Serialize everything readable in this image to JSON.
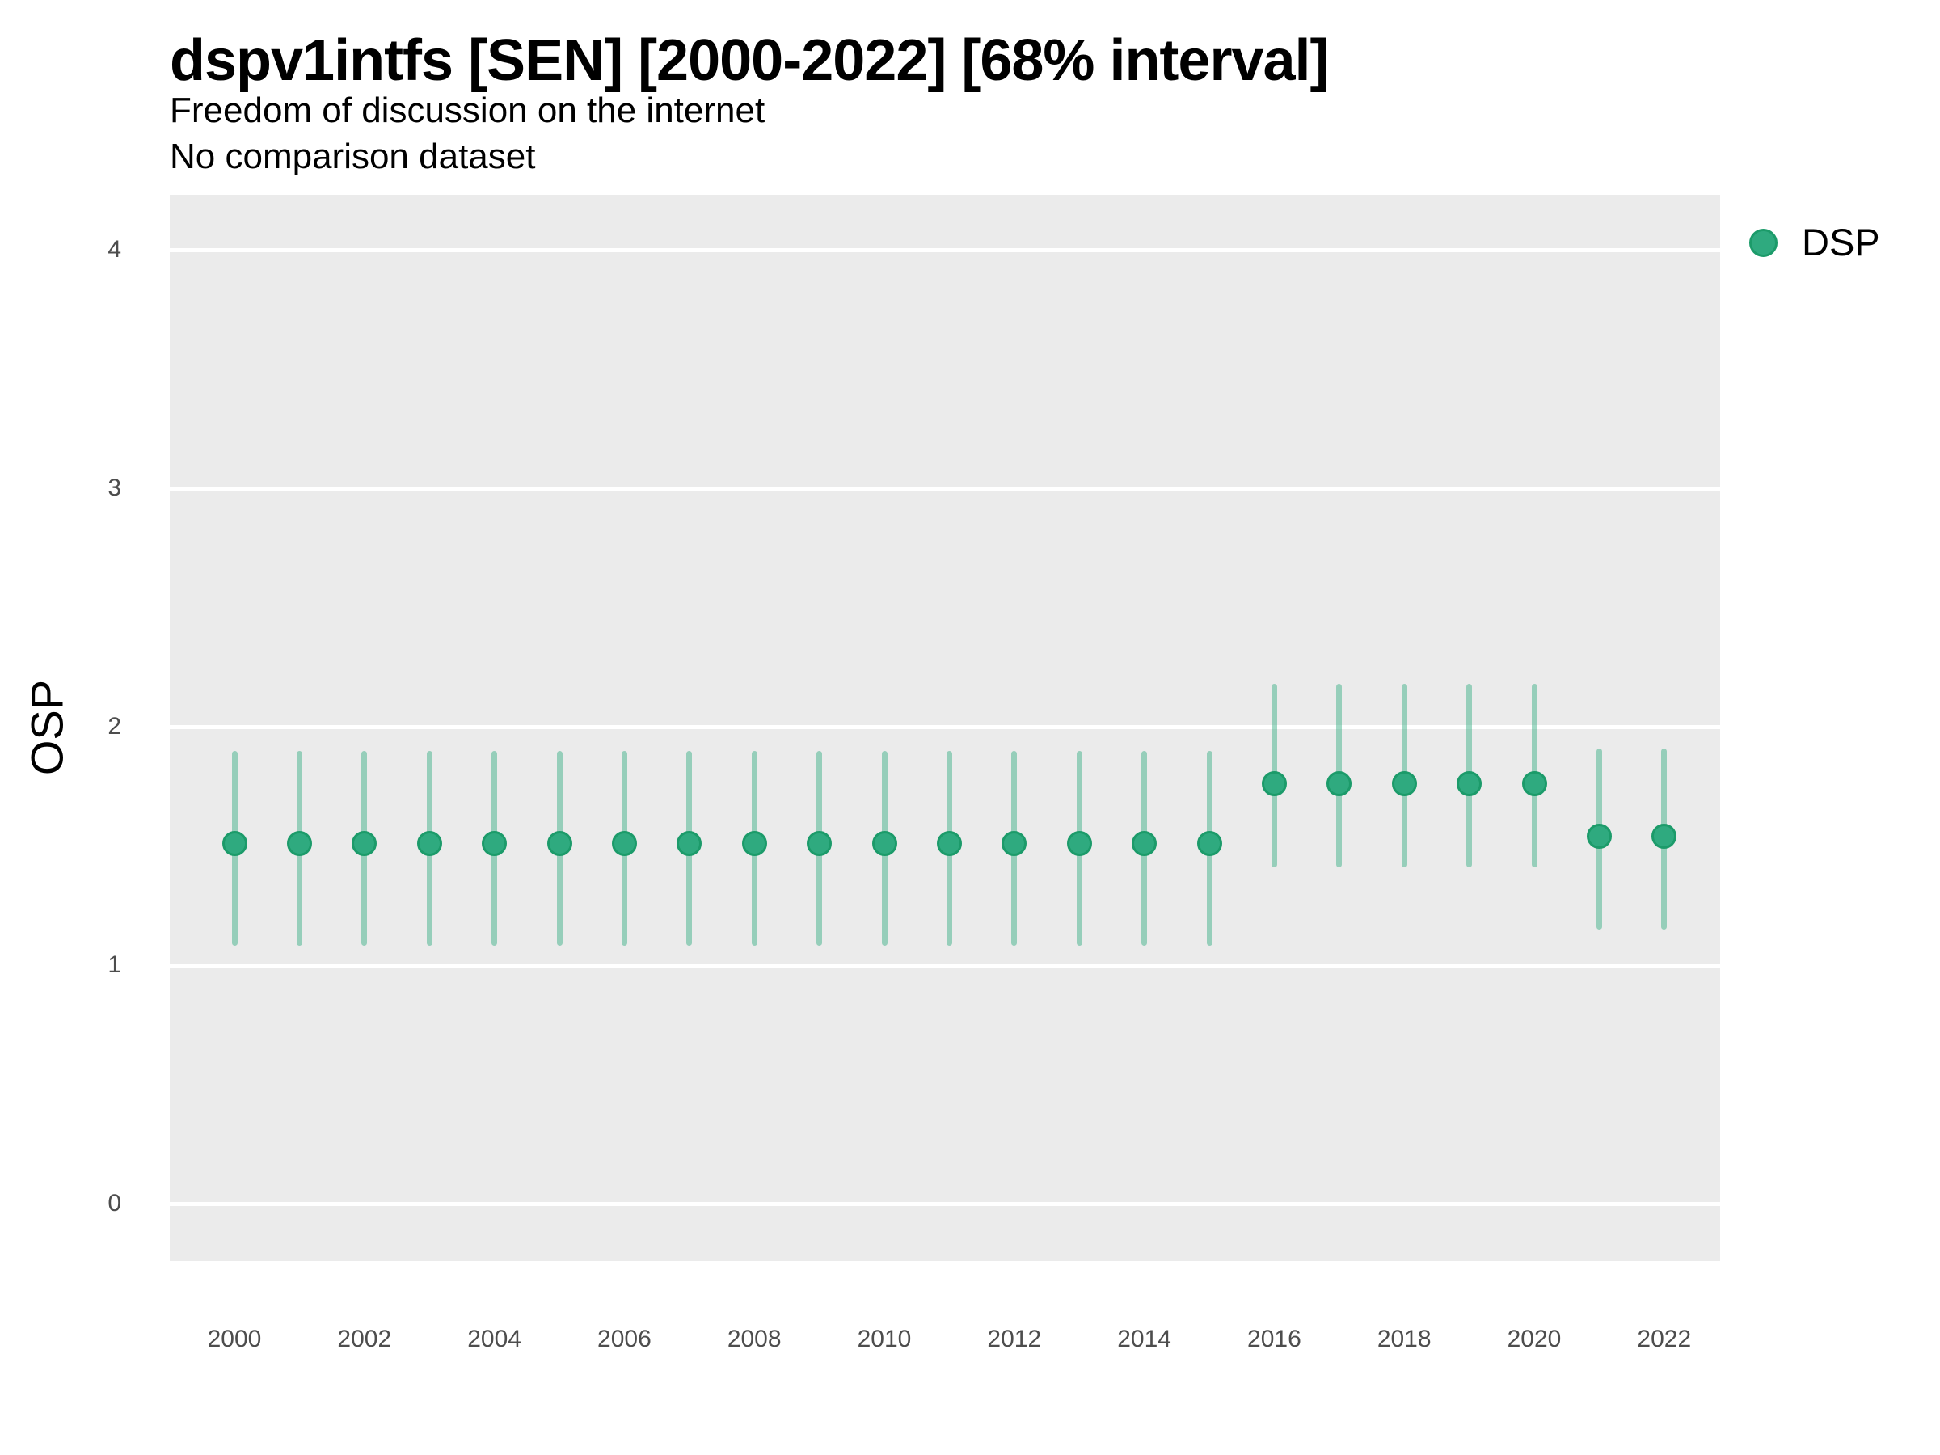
{
  "header": {
    "title": "dspv1intfs [SEN] [2000-2022] [68% interval]",
    "subtitle_line1": "Freedom of discussion on the internet",
    "subtitle_line2": "No comparison dataset"
  },
  "y_axis_title": "OSP",
  "legend_label": "DSP",
  "colors": {
    "point_fill": "#2FAA7F",
    "point_stroke": "#1C9B6A",
    "interval_bar": "rgba(47,170,127,0.45)",
    "panel_background": "#EBEBEB",
    "gridline": "#FFFFFF",
    "tick_text": "#4D4D4D"
  },
  "chart_data": {
    "type": "scatter",
    "title": "dspv1intfs [SEN] [2000-2022] [68% interval]",
    "subtitle": [
      "Freedom of discussion on the internet",
      "No comparison dataset"
    ],
    "xlabel": "",
    "ylabel": "OSP",
    "ylim": [
      0,
      4
    ],
    "y_ticks": [
      0,
      1,
      2,
      3,
      4
    ],
    "x_ticks": [
      2000,
      2002,
      2004,
      2006,
      2008,
      2010,
      2012,
      2014,
      2016,
      2018,
      2020,
      2022
    ],
    "grid": "horizontal-major-only",
    "legend_position": "right-top",
    "interval": "68%",
    "series": [
      {
        "name": "DSP",
        "points": [
          {
            "year": 2000,
            "est": 1.51,
            "lo": 1.08,
            "hi": 1.9
          },
          {
            "year": 2001,
            "est": 1.51,
            "lo": 1.08,
            "hi": 1.9
          },
          {
            "year": 2002,
            "est": 1.51,
            "lo": 1.08,
            "hi": 1.9
          },
          {
            "year": 2003,
            "est": 1.51,
            "lo": 1.08,
            "hi": 1.9
          },
          {
            "year": 2004,
            "est": 1.51,
            "lo": 1.08,
            "hi": 1.9
          },
          {
            "year": 2005,
            "est": 1.51,
            "lo": 1.08,
            "hi": 1.9
          },
          {
            "year": 2006,
            "est": 1.51,
            "lo": 1.08,
            "hi": 1.9
          },
          {
            "year": 2007,
            "est": 1.51,
            "lo": 1.08,
            "hi": 1.9
          },
          {
            "year": 2008,
            "est": 1.51,
            "lo": 1.08,
            "hi": 1.9
          },
          {
            "year": 2009,
            "est": 1.51,
            "lo": 1.08,
            "hi": 1.9
          },
          {
            "year": 2010,
            "est": 1.51,
            "lo": 1.08,
            "hi": 1.9
          },
          {
            "year": 2011,
            "est": 1.51,
            "lo": 1.08,
            "hi": 1.9
          },
          {
            "year": 2012,
            "est": 1.51,
            "lo": 1.08,
            "hi": 1.9
          },
          {
            "year": 2013,
            "est": 1.51,
            "lo": 1.08,
            "hi": 1.9
          },
          {
            "year": 2014,
            "est": 1.51,
            "lo": 1.08,
            "hi": 1.9
          },
          {
            "year": 2015,
            "est": 1.51,
            "lo": 1.08,
            "hi": 1.9
          },
          {
            "year": 2016,
            "est": 1.76,
            "lo": 1.41,
            "hi": 2.18
          },
          {
            "year": 2017,
            "est": 1.76,
            "lo": 1.41,
            "hi": 2.18
          },
          {
            "year": 2018,
            "est": 1.76,
            "lo": 1.41,
            "hi": 2.18
          },
          {
            "year": 2019,
            "est": 1.76,
            "lo": 1.41,
            "hi": 2.18
          },
          {
            "year": 2020,
            "est": 1.76,
            "lo": 1.41,
            "hi": 2.18
          },
          {
            "year": 2021,
            "est": 1.54,
            "lo": 1.15,
            "hi": 1.91
          },
          {
            "year": 2022,
            "est": 1.54,
            "lo": 1.15,
            "hi": 1.91
          }
        ]
      }
    ]
  }
}
